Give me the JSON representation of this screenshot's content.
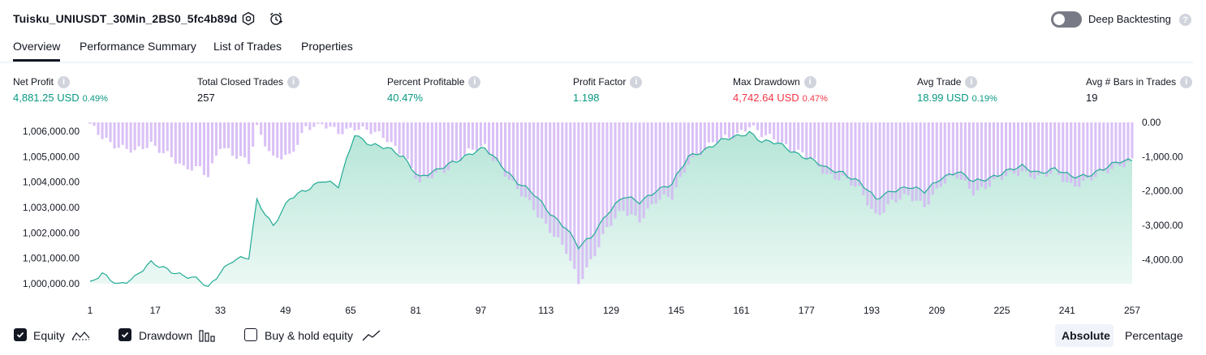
{
  "header": {
    "title": "Tuisku_UNIUSDT_30Min_2BS0_5fc4b89d",
    "deep_backtesting_label": "Deep Backtesting",
    "deep_backtesting_enabled": false
  },
  "tabs": [
    "Overview",
    "Performance Summary",
    "List of Trades",
    "Properties"
  ],
  "active_tab": "Overview",
  "metrics": [
    {
      "label": "Net Profit",
      "value": "4,881.25 USD",
      "sub": "0.49%",
      "color": "#089981"
    },
    {
      "label": "Total Closed Trades",
      "value": "257",
      "sub": "",
      "color": "#131722"
    },
    {
      "label": "Percent Profitable",
      "value": "40.47%",
      "sub": "",
      "color": "#089981"
    },
    {
      "label": "Profit Factor",
      "value": "1.198",
      "sub": "",
      "color": "#089981"
    },
    {
      "label": "Max Drawdown",
      "value": "4,742.64 USD",
      "sub": "0.47%",
      "color": "#f23645"
    },
    {
      "label": "Avg Trade",
      "value": "18.99 USD",
      "sub": "0.19%",
      "color": "#089981"
    },
    {
      "label": "Avg # Bars in Trades",
      "value": "19",
      "sub": "",
      "color": "#131722"
    }
  ],
  "chart_data": {
    "type": "area",
    "left_axis_ticks": [
      "1,006,000.00",
      "1,005,000.00",
      "1,004,000.00",
      "1,003,000.00",
      "1,002,000.00",
      "1,001,000.00",
      "1,000,000.00"
    ],
    "right_axis_ticks": [
      "0.00",
      "-1,000.00",
      "-2,000.00",
      "-3,000.00",
      "-4,000.00"
    ],
    "x_ticks": [
      "1",
      "17",
      "33",
      "49",
      "65",
      "81",
      "97",
      "113",
      "129",
      "145",
      "161",
      "177",
      "193",
      "209",
      "225",
      "241",
      "257"
    ],
    "equity_ylim": [
      1000000,
      1006000
    ],
    "drawdown_ylim": [
      -4700,
      0
    ],
    "equity_anchors": [
      [
        1,
        1000000
      ],
      [
        4,
        1000350
      ],
      [
        8,
        1000000
      ],
      [
        12,
        1000250
      ],
      [
        16,
        1000800
      ],
      [
        20,
        1000600
      ],
      [
        24,
        1000300
      ],
      [
        28,
        1000100
      ],
      [
        30,
        999850
      ],
      [
        33,
        1000500
      ],
      [
        36,
        1000900
      ],
      [
        40,
        1001000
      ],
      [
        42,
        1003300
      ],
      [
        46,
        1002300
      ],
      [
        50,
        1003300
      ],
      [
        54,
        1003700
      ],
      [
        58,
        1004100
      ],
      [
        62,
        1003800
      ],
      [
        66,
        1005900
      ],
      [
        70,
        1005500
      ],
      [
        74,
        1005300
      ],
      [
        78,
        1005000
      ],
      [
        82,
        1004200
      ],
      [
        86,
        1004400
      ],
      [
        90,
        1004800
      ],
      [
        94,
        1005100
      ],
      [
        98,
        1005300
      ],
      [
        102,
        1004700
      ],
      [
        106,
        1004000
      ],
      [
        110,
        1003500
      ],
      [
        114,
        1002800
      ],
      [
        118,
        1002200
      ],
      [
        121,
        1001400
      ],
      [
        124,
        1001800
      ],
      [
        128,
        1002800
      ],
      [
        132,
        1003400
      ],
      [
        136,
        1003200
      ],
      [
        140,
        1003700
      ],
      [
        144,
        1003900
      ],
      [
        148,
        1005000
      ],
      [
        152,
        1005300
      ],
      [
        156,
        1005600
      ],
      [
        160,
        1005800
      ],
      [
        163,
        1006000
      ],
      [
        166,
        1005600
      ],
      [
        170,
        1005500
      ],
      [
        174,
        1005200
      ],
      [
        178,
        1004900
      ],
      [
        182,
        1004500
      ],
      [
        186,
        1004400
      ],
      [
        190,
        1004000
      ],
      [
        194,
        1003300
      ],
      [
        198,
        1003700
      ],
      [
        202,
        1003800
      ],
      [
        206,
        1003600
      ],
      [
        210,
        1004200
      ],
      [
        214,
        1004400
      ],
      [
        218,
        1004000
      ],
      [
        222,
        1004200
      ],
      [
        226,
        1004400
      ],
      [
        230,
        1004600
      ],
      [
        234,
        1004400
      ],
      [
        238,
        1004500
      ],
      [
        242,
        1004200
      ],
      [
        246,
        1004300
      ],
      [
        250,
        1004500
      ],
      [
        254,
        1004800
      ],
      [
        257,
        1004900
      ]
    ],
    "drawdown_anchors": [
      [
        1,
        -100
      ],
      [
        4,
        -400
      ],
      [
        8,
        -700
      ],
      [
        12,
        -900
      ],
      [
        16,
        -600
      ],
      [
        20,
        -900
      ],
      [
        24,
        -1400
      ],
      [
        28,
        -1300
      ],
      [
        30,
        -1500
      ],
      [
        33,
        -700
      ],
      [
        36,
        -1000
      ],
      [
        40,
        -1100
      ],
      [
        42,
        -100
      ],
      [
        46,
        -1100
      ],
      [
        50,
        -1000
      ],
      [
        54,
        -100
      ],
      [
        58,
        -100
      ],
      [
        62,
        -300
      ],
      [
        66,
        -100
      ],
      [
        70,
        -300
      ],
      [
        74,
        -500
      ],
      [
        78,
        -900
      ],
      [
        82,
        -1800
      ],
      [
        86,
        -1500
      ],
      [
        90,
        -1200
      ],
      [
        94,
        -900
      ],
      [
        98,
        -700
      ],
      [
        102,
        -1300
      ],
      [
        106,
        -2000
      ],
      [
        110,
        -2500
      ],
      [
        114,
        -3100
      ],
      [
        118,
        -3800
      ],
      [
        121,
        -4700
      ],
      [
        124,
        -4000
      ],
      [
        128,
        -3100
      ],
      [
        132,
        -2600
      ],
      [
        136,
        -2800
      ],
      [
        140,
        -2300
      ],
      [
        144,
        -2200
      ],
      [
        148,
        -1100
      ],
      [
        152,
        -800
      ],
      [
        156,
        -500
      ],
      [
        160,
        -300
      ],
      [
        163,
        -100
      ],
      [
        166,
        -400
      ],
      [
        170,
        -500
      ],
      [
        174,
        -800
      ],
      [
        178,
        -1100
      ],
      [
        182,
        -1500
      ],
      [
        186,
        -1600
      ],
      [
        190,
        -2000
      ],
      [
        194,
        -2700
      ],
      [
        198,
        -2300
      ],
      [
        202,
        -2200
      ],
      [
        206,
        -2400
      ],
      [
        210,
        -1800
      ],
      [
        214,
        -1600
      ],
      [
        218,
        -2000
      ],
      [
        222,
        -1800
      ],
      [
        226,
        -1600
      ],
      [
        230,
        -1400
      ],
      [
        234,
        -1600
      ],
      [
        238,
        -1500
      ],
      [
        242,
        -1800
      ],
      [
        246,
        -1700
      ],
      [
        250,
        -1500
      ],
      [
        254,
        -1200
      ],
      [
        257,
        -1100
      ]
    ],
    "series": [
      {
        "name": "Equity",
        "color": "#22ab94"
      },
      {
        "name": "Drawdown",
        "color": "#d4b6f5"
      },
      {
        "name": "Buy & hold equity",
        "color": "#787b86"
      }
    ],
    "grid": false
  },
  "legend": [
    {
      "label": "Equity",
      "checked": true,
      "icon": "equity-line-icon"
    },
    {
      "label": "Drawdown",
      "checked": true,
      "icon": "drawdown-bars-icon"
    },
    {
      "label": "Buy & hold equity",
      "checked": false,
      "icon": "buyhold-line-icon"
    }
  ],
  "view_modes": [
    "Absolute",
    "Percentage"
  ],
  "active_view_mode": "Absolute"
}
